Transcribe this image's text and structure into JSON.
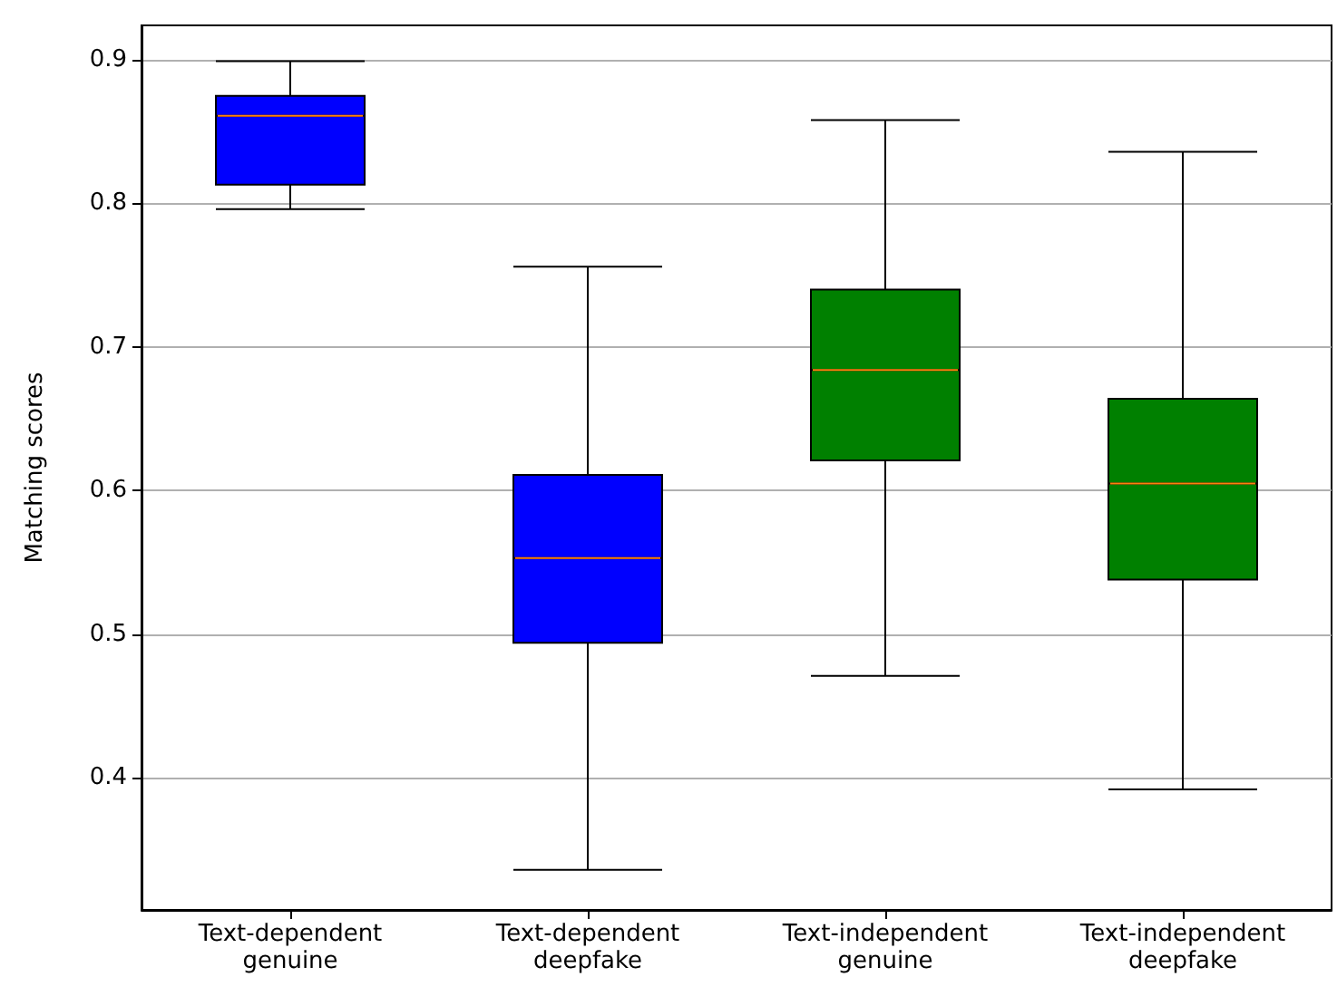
{
  "chart_data": {
    "type": "box",
    "ylabel": "Matching scores",
    "categories": [
      "Text-dependent\ngenuine",
      "Text-dependent\ndeepfake",
      "Text-independent\ngenuine",
      "Text-independent\ndeepfake"
    ],
    "colors": [
      "#0000ff",
      "#0000ff",
      "#008000",
      "#008000"
    ],
    "boxes": [
      {
        "low": 0.796,
        "q1": 0.813,
        "median": 0.861,
        "q3": 0.875,
        "high": 0.899
      },
      {
        "low": 0.336,
        "q1": 0.494,
        "median": 0.553,
        "q3": 0.611,
        "high": 0.756
      },
      {
        "low": 0.471,
        "q1": 0.621,
        "median": 0.684,
        "q3": 0.74,
        "high": 0.858
      },
      {
        "low": 0.392,
        "q1": 0.538,
        "median": 0.605,
        "q3": 0.664,
        "high": 0.836
      }
    ],
    "ylim": [
      0.308,
      0.924
    ],
    "yticks": [
      0.4,
      0.5,
      0.6,
      0.7,
      0.8,
      0.9
    ],
    "grid": "y"
  }
}
